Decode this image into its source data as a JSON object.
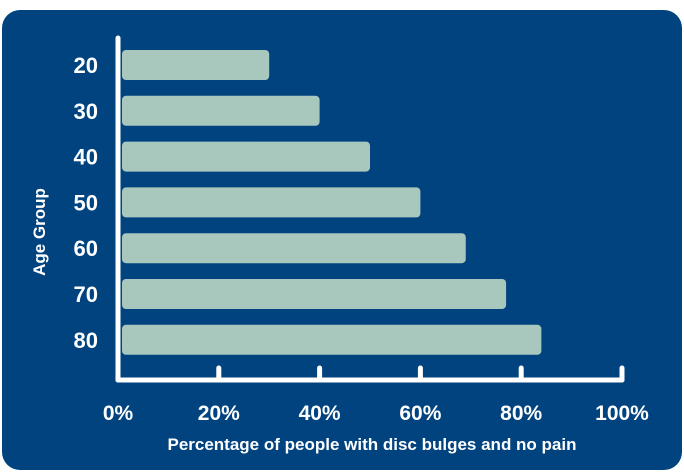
{
  "colors": {
    "background": "#01437f",
    "bar": "#a9c8bd",
    "axis": "#ffffff",
    "text": "#ffffff"
  },
  "chart_data": {
    "type": "bar",
    "orientation": "horizontal",
    "categories": [
      "20",
      "30",
      "40",
      "50",
      "60",
      "70",
      "80"
    ],
    "values": [
      30,
      40,
      50,
      60,
      69,
      77,
      84
    ],
    "title": "",
    "xlabel": "Percentage of people with disc bulges and no pain",
    "ylabel": "Age Group",
    "xlim": [
      0,
      100
    ],
    "x_ticks": [
      0,
      20,
      40,
      60,
      80,
      100
    ],
    "x_tick_labels": [
      "0%",
      "20%",
      "40%",
      "60%",
      "80%",
      "100%"
    ],
    "grid": false,
    "legend": "none"
  }
}
